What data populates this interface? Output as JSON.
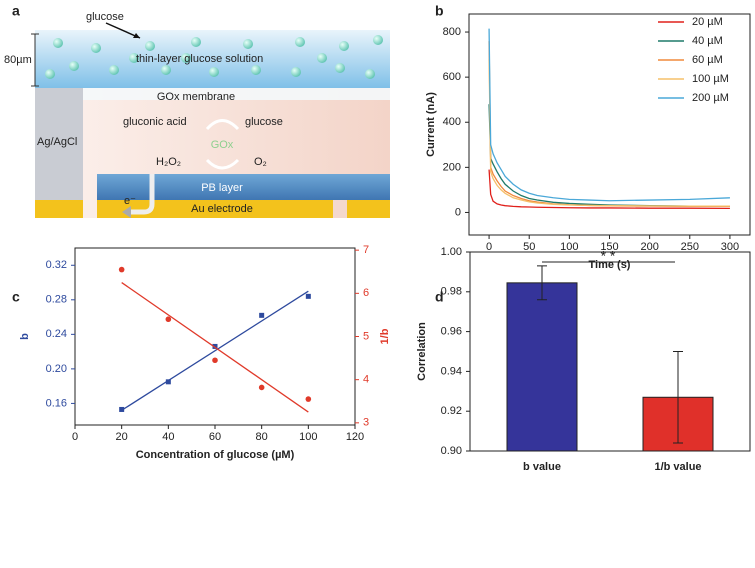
{
  "diagram": {
    "panel": "a",
    "thickness": "80µm",
    "glucose_pointer": "glucose",
    "solution": "thin-layer glucose solution",
    "membrane": "GOx membrane",
    "reference": "Ag/AgCl",
    "product": "gluconic acid",
    "substrate": "glucose",
    "enzyme": "GOx",
    "h2o2": "H₂O₂",
    "o2": "O₂",
    "pb": "PB layer",
    "electron": "e⁻",
    "electrode": "Au electrode"
  },
  "chart_data": [
    {
      "panel": "b",
      "type": "line",
      "xlabel": "Time (s)",
      "ylabel": "Current (nA)",
      "x": [
        0,
        2,
        5,
        10,
        15,
        20,
        30,
        40,
        50,
        60,
        80,
        100,
        125,
        150,
        200,
        250,
        300
      ],
      "series": [
        {
          "name": "20 µM",
          "color": "#e0201b",
          "values": [
            190,
            80,
            50,
            38,
            33,
            30,
            27,
            25,
            24,
            23,
            22,
            21,
            20,
            20,
            19,
            19,
            18
          ]
        },
        {
          "name": "40 µM",
          "color": "#1f7a6a",
          "values": [
            480,
            240,
            215,
            180,
            150,
            125,
            95,
            75,
            62,
            55,
            45,
            40,
            36,
            33,
            30,
            28,
            27
          ]
        },
        {
          "name": "60 µM",
          "color": "#f08a3c",
          "values": [
            760,
            200,
            170,
            140,
            115,
            95,
            75,
            62,
            52,
            46,
            38,
            34,
            31,
            29,
            28,
            27,
            27
          ]
        },
        {
          "name": "100 µM",
          "color": "#f5c06a",
          "values": [
            680,
            180,
            150,
            120,
            100,
            85,
            65,
            55,
            47,
            42,
            36,
            33,
            31,
            30,
            29,
            28,
            28
          ]
        },
        {
          "name": "200 µM",
          "color": "#4aa8d8",
          "values": [
            815,
            300,
            260,
            220,
            190,
            160,
            125,
            100,
            85,
            75,
            65,
            58,
            55,
            52,
            55,
            58,
            65
          ]
        }
      ],
      "xlim": [
        -25,
        325
      ],
      "xticks": [
        0,
        50,
        100,
        150,
        200,
        250,
        300
      ],
      "ylim": [
        -100,
        880
      ],
      "yticks": [
        0,
        200,
        400,
        600,
        800
      ],
      "legend": "upper right"
    },
    {
      "panel": "c",
      "type": "scatter",
      "xlabel": "Concentration of glucose (µM)",
      "ylabel": "b",
      "y2label": "1/b",
      "ylabel_color": "#2e4a9e",
      "y2label_color": "#e03a2a",
      "xlim": [
        0,
        120
      ],
      "xticks": [
        0,
        20,
        40,
        60,
        80,
        100,
        120
      ],
      "ylim": [
        0.135,
        0.34
      ],
      "yticks": [
        0.16,
        {
          "value": 0.2,
          "label": "0.20"
        },
        0.24,
        0.28,
        0.32
      ],
      "y2lim": [
        2.95,
        7.05
      ],
      "y2ticks": [
        3,
        4,
        5,
        6,
        7
      ],
      "series": [
        {
          "type": "scatter",
          "marker": "square",
          "color": "#2e4a9e",
          "x": [
            20,
            40,
            60,
            80,
            100
          ],
          "values": [
            0.153,
            0.185,
            0.226,
            0.262,
            0.284
          ]
        },
        {
          "type": "line",
          "color": "#2e4a9e",
          "x": [
            20,
            100
          ],
          "values": [
            0.152,
            0.29
          ]
        },
        {
          "type": "scatter",
          "marker": "circle",
          "axis": "y2",
          "color": "#e03a2a",
          "x": [
            20,
            40,
            60,
            80,
            100
          ],
          "values": [
            6.55,
            5.4,
            4.45,
            3.82,
            3.55
          ]
        },
        {
          "type": "line",
          "axis": "y2",
          "color": "#e03a2a",
          "x": [
            20,
            100
          ],
          "values": [
            6.25,
            3.25
          ]
        }
      ]
    },
    {
      "panel": "d",
      "type": "bar",
      "ylabel": "Correlation",
      "categories": [
        "b value",
        "1/b value"
      ],
      "values": [
        0.9845,
        0.927
      ],
      "errors": [
        0.0085,
        0.023
      ],
      "colors": [
        "#35349a",
        "#e0302a"
      ],
      "ylim": [
        0.9,
        1.0
      ],
      "yticks": [
        {
          "value": 0.9,
          "label": "0.90"
        },
        0.92,
        0.94,
        0.96,
        0.98,
        {
          "value": 1,
          "label": "1.00"
        }
      ],
      "annotation": "* *"
    }
  ]
}
